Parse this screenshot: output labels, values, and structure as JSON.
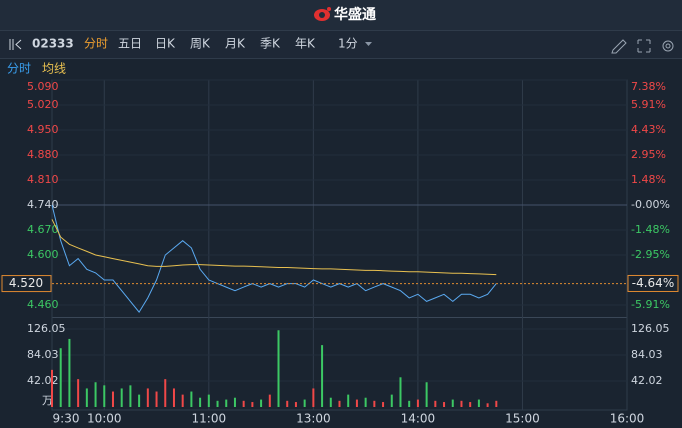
{
  "header": {
    "title": "华盛通"
  },
  "toolbar": {
    "code": "02333",
    "tabs": [
      "分时",
      "五日",
      "日K",
      "周K",
      "月K",
      "季K",
      "年K"
    ],
    "interval": "1分",
    "legend": [
      "分时",
      "均线"
    ]
  },
  "chart_data": [
    {
      "type": "line",
      "x": [
        0,
        5,
        10,
        15,
        20,
        25,
        30,
        35,
        40,
        45,
        50,
        55,
        60,
        65,
        70,
        75,
        80,
        85,
        90,
        95,
        100,
        105,
        110,
        115,
        120,
        125,
        130,
        135,
        140,
        145,
        150,
        155,
        160,
        165,
        170,
        175,
        180,
        185,
        190,
        195,
        200,
        205,
        210,
        215,
        220,
        225,
        230,
        235,
        240,
        245,
        250,
        255
      ],
      "xlim": [
        0,
        330
      ],
      "series": [
        {
          "name": "分时",
          "color": "#5aa9f0",
          "values": [
            4.74,
            4.64,
            4.57,
            4.59,
            4.56,
            4.55,
            4.53,
            4.53,
            4.5,
            4.47,
            4.44,
            4.48,
            4.53,
            4.6,
            4.62,
            4.64,
            4.62,
            4.56,
            4.53,
            4.52,
            4.51,
            4.5,
            4.51,
            4.52,
            4.51,
            4.52,
            4.51,
            4.52,
            4.52,
            4.51,
            4.53,
            4.52,
            4.51,
            4.52,
            4.51,
            4.52,
            4.5,
            4.51,
            4.52,
            4.51,
            4.5,
            4.48,
            4.49,
            4.47,
            4.48,
            4.49,
            4.47,
            4.49,
            4.49,
            4.48,
            4.49,
            4.52
          ]
        },
        {
          "name": "均线",
          "color": "#e8c050",
          "values": [
            4.7,
            4.65,
            4.63,
            4.62,
            4.61,
            4.6,
            4.595,
            4.59,
            4.585,
            4.58,
            4.575,
            4.57,
            4.568,
            4.568,
            4.57,
            4.572,
            4.573,
            4.573,
            4.572,
            4.571,
            4.57,
            4.569,
            4.569,
            4.568,
            4.567,
            4.566,
            4.565,
            4.565,
            4.564,
            4.563,
            4.562,
            4.561,
            4.561,
            4.56,
            4.559,
            4.558,
            4.557,
            4.557,
            4.556,
            4.555,
            4.554,
            4.553,
            4.553,
            4.552,
            4.551,
            4.55,
            4.549,
            4.549,
            4.548,
            4.547,
            4.546,
            4.545
          ]
        }
      ],
      "ylim": [
        4.425,
        5.09
      ],
      "yticks": [
        {
          "value": 5.09,
          "label": "5.090"
        },
        {
          "value": 5.02,
          "label": "5.020"
        },
        {
          "value": 4.95,
          "label": "4.950"
        },
        {
          "value": 4.88,
          "label": "4.880"
        },
        {
          "value": 4.81,
          "label": "4.810"
        },
        {
          "value": 4.74,
          "label": "4.740"
        },
        {
          "value": 4.67,
          "label": "4.670"
        },
        {
          "value": 4.6,
          "label": "4.600"
        },
        {
          "value": 4.46,
          "label": "4.460"
        }
      ],
      "y2lim": [
        -6.65,
        7.38
      ],
      "y2ticks": [
        {
          "value": 7.38,
          "label": "7.38%"
        },
        {
          "value": 5.91,
          "label": "5.91%"
        },
        {
          "value": 4.43,
          "label": "4.43%"
        },
        {
          "value": 2.95,
          "label": "2.95%"
        },
        {
          "value": 1.48,
          "label": "1.48%"
        },
        {
          "value": 0,
          "label": "-0.00%"
        },
        {
          "value": -1.48,
          "label": "-1.48%"
        },
        {
          "value": -2.95,
          "label": "-2.95%"
        },
        {
          "value": -5.91,
          "label": "-5.91%"
        }
      ],
      "current_price": {
        "value": 4.52,
        "label": "4.520"
      },
      "current_change": {
        "value": -4.64,
        "label": "-4.64%"
      }
    },
    {
      "type": "bar",
      "x": [
        0,
        5,
        10,
        15,
        20,
        25,
        30,
        35,
        40,
        45,
        50,
        55,
        60,
        65,
        70,
        75,
        80,
        85,
        90,
        95,
        100,
        105,
        110,
        115,
        120,
        125,
        130,
        135,
        140,
        145,
        150,
        155,
        160,
        165,
        170,
        175,
        180,
        185,
        190,
        195,
        200,
        205,
        210,
        215,
        220,
        225,
        230,
        235,
        240,
        245,
        250,
        255
      ],
      "values": [
        60,
        95,
        110,
        45,
        30,
        40,
        35,
        25,
        30,
        35,
        20,
        30,
        25,
        45,
        30,
        20,
        25,
        15,
        20,
        10,
        12,
        15,
        10,
        8,
        12,
        20,
        124,
        10,
        8,
        12,
        30,
        100,
        15,
        10,
        20,
        12,
        15,
        10,
        8,
        20,
        48,
        10,
        12,
        40,
        10,
        8,
        12,
        10,
        8,
        12,
        6,
        10
      ],
      "colors": [
        "#f04848",
        "#3cc864",
        "#3cc864",
        "#f04848",
        "#3cc864",
        "#3cc864",
        "#3cc864",
        "#f04848",
        "#3cc864",
        "#3cc864",
        "#3cc864",
        "#f04848",
        "#f04848",
        "#f04848",
        "#f04848",
        "#f04848",
        "#3cc864",
        "#3cc864",
        "#3cc864",
        "#3cc864",
        "#3cc864",
        "#3cc864",
        "#f04848",
        "#f04848",
        "#3cc864",
        "#f04848",
        "#3cc864",
        "#f04848",
        "#f04848",
        "#3cc864",
        "#f04848",
        "#3cc864",
        "#3cc864",
        "#f04848",
        "#3cc864",
        "#f04848",
        "#3cc864",
        "#f04848",
        "#f04848",
        "#3cc864",
        "#3cc864",
        "#3cc864",
        "#f04848",
        "#3cc864",
        "#f04848",
        "#f04848",
        "#3cc864",
        "#f04848",
        "#f04848",
        "#3cc864",
        "#f04848",
        "#f04848"
      ],
      "ylim": [
        0,
        126.05
      ],
      "yticks": [
        42.02,
        84.03,
        126.05
      ],
      "unit": "万",
      "xlim": [
        0,
        330
      ],
      "xticks": [
        {
          "value": 0,
          "label": "9:30"
        },
        {
          "value": 30,
          "label": "10:00"
        },
        {
          "value": 90,
          "label": "11:00"
        },
        {
          "value": 150,
          "label": "13:00"
        },
        {
          "value": 210,
          "label": "14:00"
        },
        {
          "value": 270,
          "label": "15:00"
        },
        {
          "value": 330,
          "label": "16:00"
        }
      ]
    }
  ]
}
